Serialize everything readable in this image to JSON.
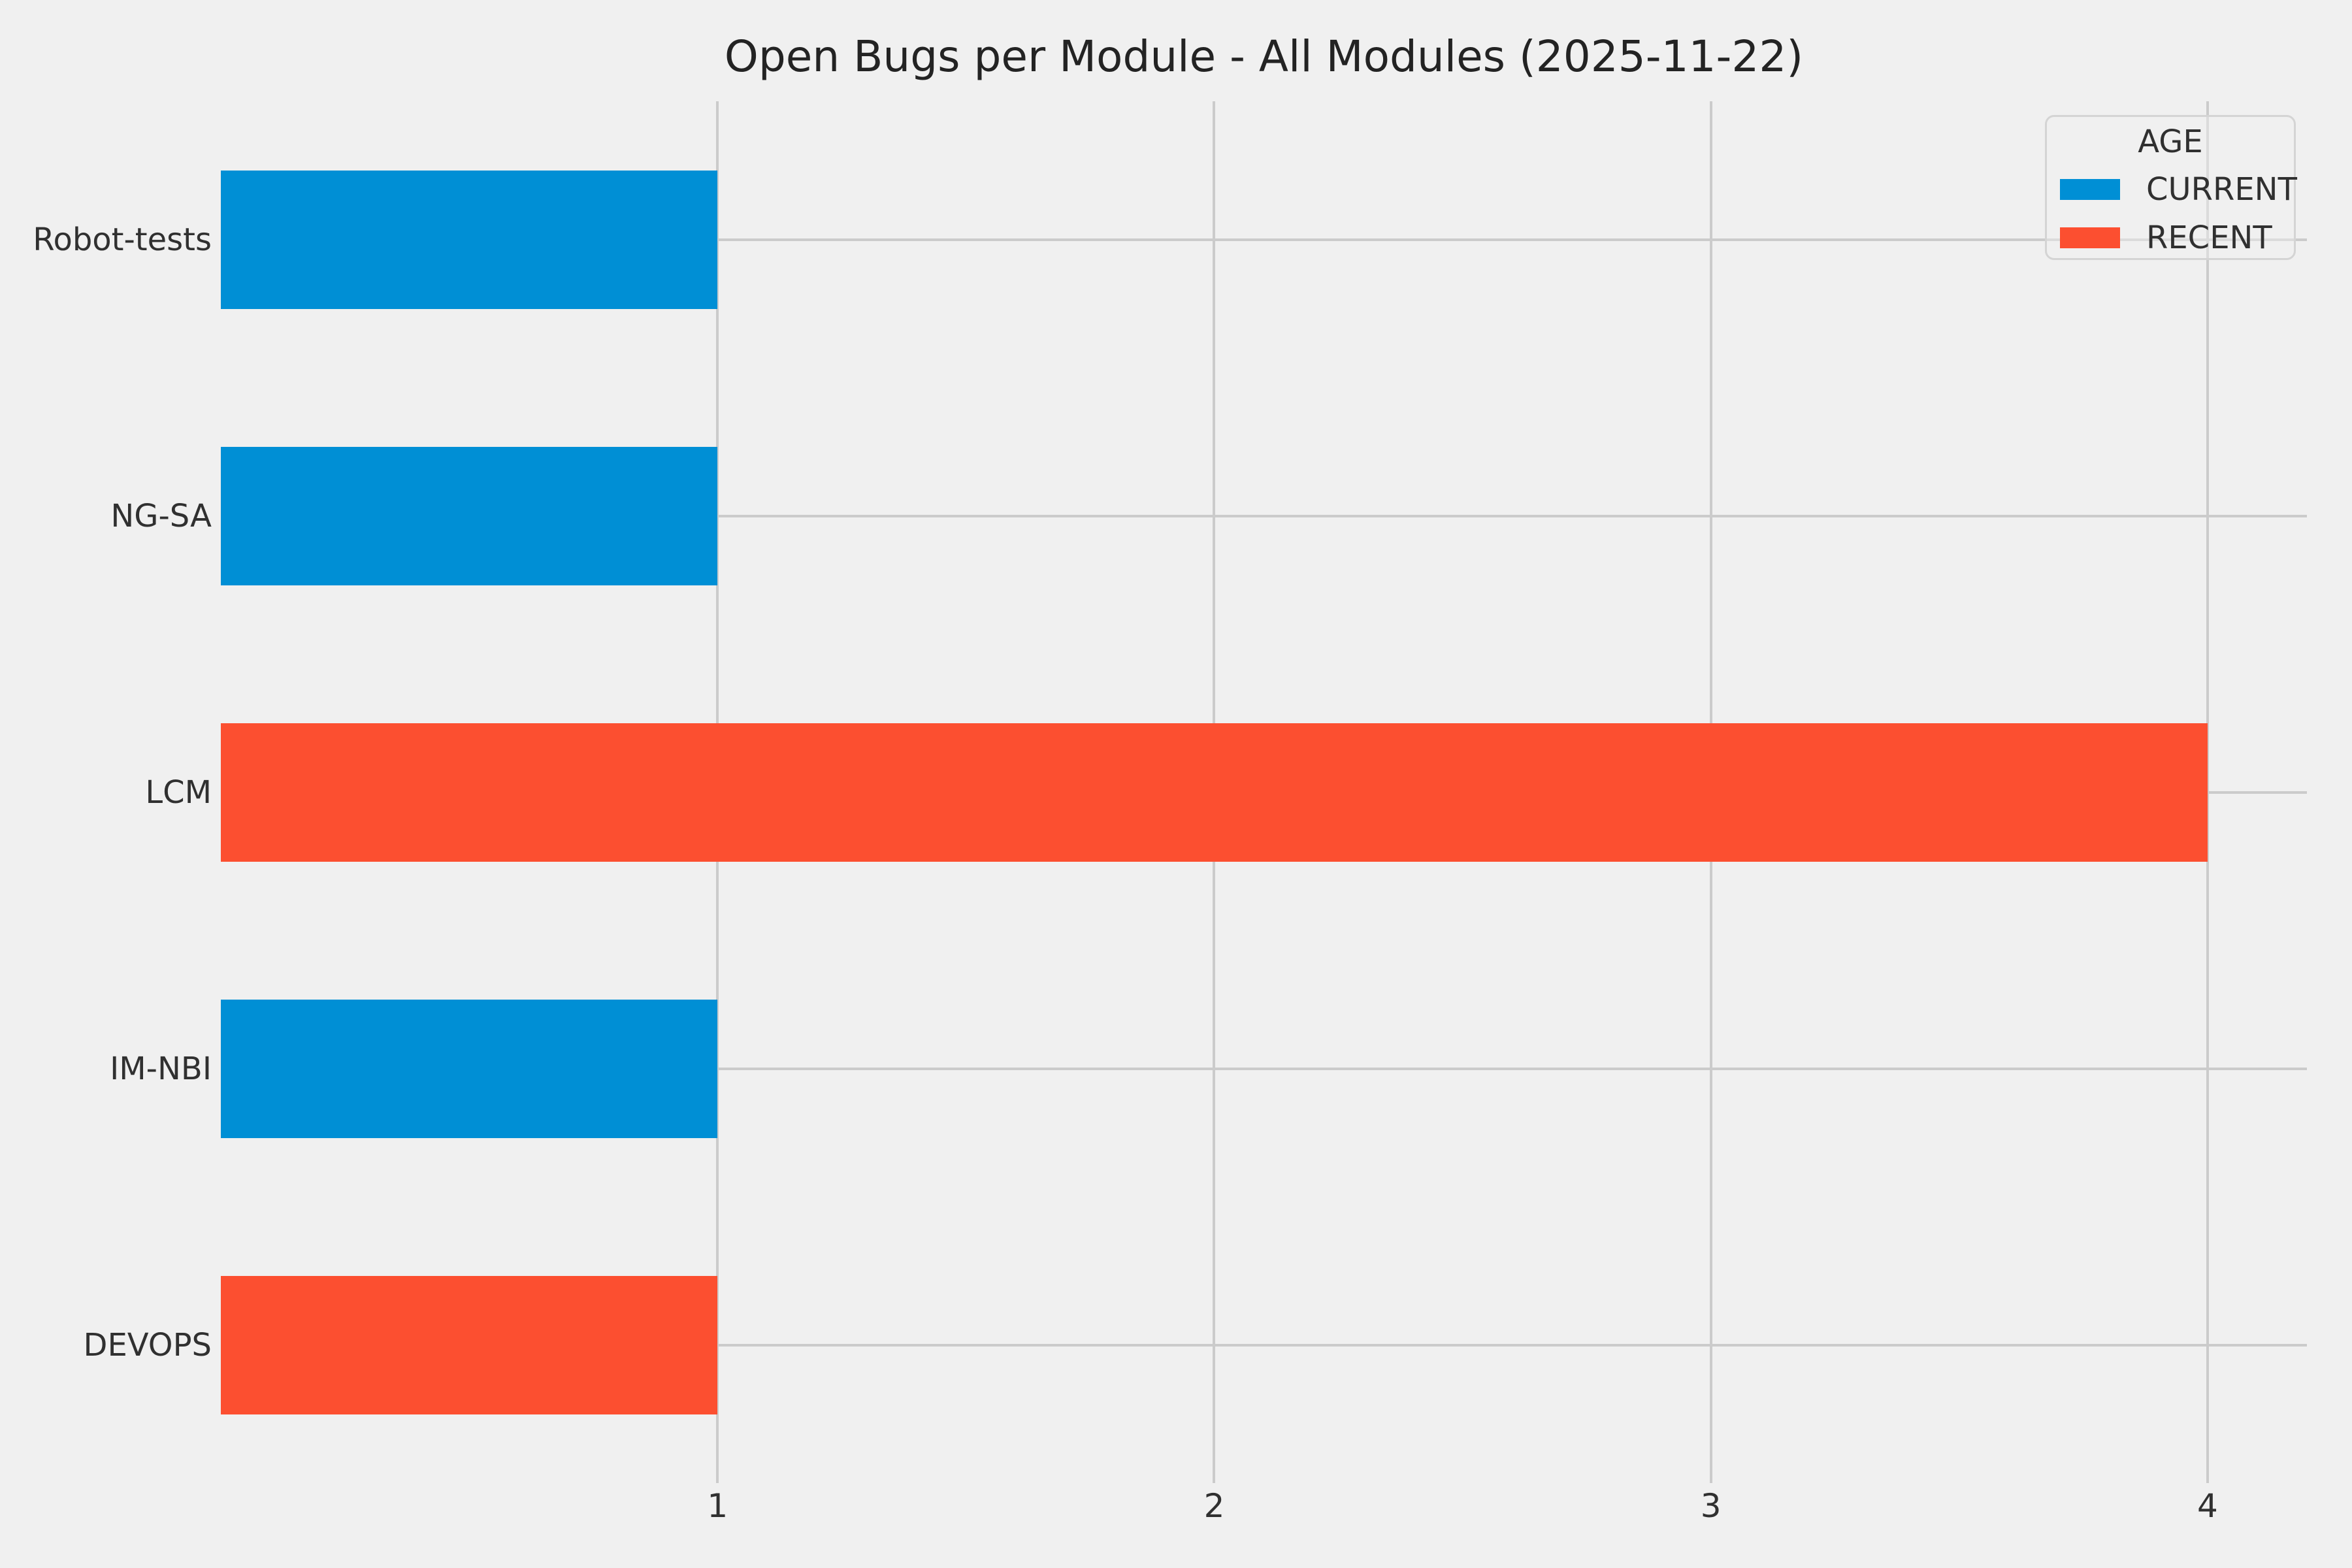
{
  "figure": {
    "background_color": "#f0f0f0",
    "grid_color": "#cbcbcb",
    "text_color": "#303030",
    "title_color": "#232323"
  },
  "chart_data": {
    "type": "bar",
    "orientation": "horizontal",
    "title": "Open Bugs per Module - All Modules (2025-11-22)",
    "categories": [
      "Robot-tests",
      "NG-SA",
      "LCM",
      "IM-NBI",
      "DEVOPS"
    ],
    "values": [
      1,
      1,
      4,
      1,
      1
    ],
    "bar_series": [
      "CURRENT",
      "CURRENT",
      "RECENT",
      "CURRENT",
      "RECENT"
    ],
    "series_colors": {
      "CURRENT": "#008fd5",
      "RECENT": "#fc4f30"
    },
    "xlabel": "",
    "ylabel": "",
    "x_ticks": [
      1,
      2,
      3,
      4
    ],
    "xlim": [
      0,
      4.2
    ],
    "grid": "both",
    "bar_thickness_fraction": 0.5,
    "legend": {
      "title": "AGE",
      "position": "upper-right",
      "entries": [
        {
          "label": "CURRENT",
          "color": "#008fd5"
        },
        {
          "label": "RECENT",
          "color": "#fc4f30"
        }
      ]
    }
  }
}
